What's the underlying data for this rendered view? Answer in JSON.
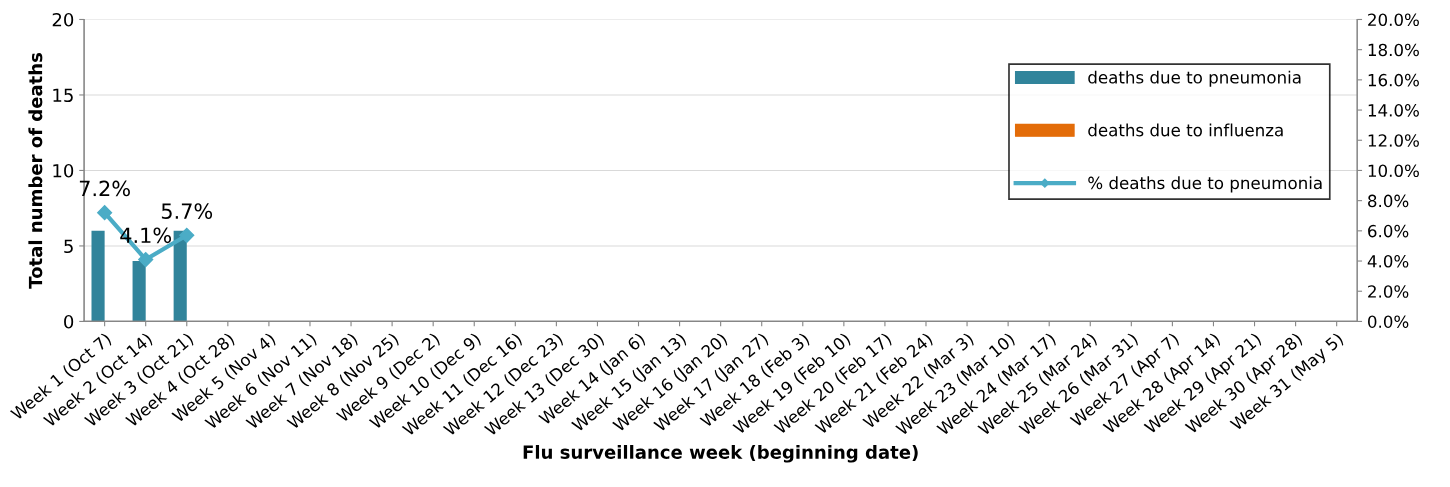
{
  "chart_data": {
    "type": "bar",
    "xlabel": "Flu surveillance week (beginning date)",
    "ylabel": "Total number of deaths",
    "categories": [
      "Week 1 (Oct 7)",
      "Week 2 (Oct 14)",
      "Week 3 (Oct 21)",
      "Week 4 (Oct 28)",
      "Week 5 (Nov 4)",
      "Week 6 (Nov 11)",
      "Week 7 (Nov 18)",
      "Week 8 (Nov 25)",
      "Week 9 (Dec 2)",
      "Week 10 (Dec 9)",
      "Week 11 (Dec 16)",
      "Week 12 (Dec 23)",
      "Week 13 (Dec 30)",
      "Week 14 (Jan 6)",
      "Week 15 (Jan 13)",
      "Week 16 (Jan 20)",
      "Week 17 (Jan 27)",
      "Week 18 (Feb 3)",
      "Week 19 (Feb 10)",
      "Week 20 (Feb 17)",
      "Week 21 (Feb 24)",
      "Week 22 (Mar 3)",
      "Week 23 (Mar 10)",
      "Week 24 (Mar 17)",
      "Week 25 (Mar 24)",
      "Week 26 (Mar 31)",
      "Week 27 (Apr 7)",
      "Week 28 (Apr 14)",
      "Week 29 (Apr 21)",
      "Week 30 (Apr 28)",
      "Week 31 (May 5)"
    ],
    "series": [
      {
        "name": "deaths due to pneumonia",
        "color": "#31849b",
        "values": [
          6,
          4,
          6,
          null,
          null,
          null,
          null,
          null,
          null,
          null,
          null,
          null,
          null,
          null,
          null,
          null,
          null,
          null,
          null,
          null,
          null,
          null,
          null,
          null,
          null,
          null,
          null,
          null,
          null,
          null,
          null
        ]
      },
      {
        "name": "deaths due to influenza",
        "color": "#e36c09",
        "values": [
          null,
          null,
          null,
          null,
          null,
          null,
          null,
          null,
          null,
          null,
          null,
          null,
          null,
          null,
          null,
          null,
          null,
          null,
          null,
          null,
          null,
          null,
          null,
          null,
          null,
          null,
          null,
          null,
          null,
          null,
          null
        ]
      },
      {
        "name": "% deaths due to pneumonia",
        "type": "line",
        "axis": "y2",
        "color": "#4bacc6",
        "marker": "diamond",
        "values": [
          7.2,
          4.1,
          5.7,
          null,
          null,
          null,
          null,
          null,
          null,
          null,
          null,
          null,
          null,
          null,
          null,
          null,
          null,
          null,
          null,
          null,
          null,
          null,
          null,
          null,
          null,
          null,
          null,
          null,
          null,
          null,
          null
        ],
        "value_labels": [
          "7.2%",
          "4.1%",
          "5.7%",
          null,
          null,
          null,
          null,
          null,
          null,
          null,
          null,
          null,
          null,
          null,
          null,
          null,
          null,
          null,
          null,
          null,
          null,
          null,
          null,
          null,
          null,
          null,
          null,
          null,
          null,
          null,
          null
        ]
      }
    ],
    "ylim": [
      0,
      20
    ],
    "yticks": [
      0,
      5,
      10,
      15,
      20
    ],
    "y2lim": [
      0,
      20
    ],
    "y2ticks": [
      {
        "value": 0,
        "label": "0.0%"
      },
      {
        "value": 2,
        "label": "2.0%"
      },
      {
        "value": 4,
        "label": "4.0%"
      },
      {
        "value": 6,
        "label": "6.0%"
      },
      {
        "value": 8,
        "label": "8.0%"
      },
      {
        "value": 10,
        "label": "10.0%"
      },
      {
        "value": 12,
        "label": "12.0%"
      },
      {
        "value": 14,
        "label": "14.0%"
      },
      {
        "value": 16,
        "label": "16.0%"
      },
      {
        "value": 18,
        "label": "18.0%"
      },
      {
        "value": 20,
        "label": "20.0%"
      }
    ],
    "grid": "y",
    "legend": "top right"
  }
}
